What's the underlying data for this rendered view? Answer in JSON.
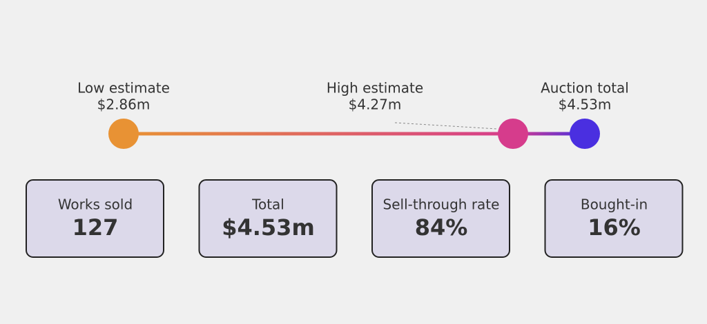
{
  "chart_data": {
    "type": "range",
    "categories": [
      "Low estimate",
      "High estimate",
      "Auction total"
    ],
    "values": [
      2.86,
      4.27,
      4.53
    ],
    "value_labels": [
      "$2.86m",
      "$4.27m",
      "$4.53m"
    ],
    "colors": [
      "#e89234",
      "#d63c8c",
      "#4a2fe0"
    ]
  },
  "cards": [
    {
      "label": "Works sold",
      "value": "127"
    },
    {
      "label": "Total",
      "value": "$4.53m"
    },
    {
      "label": "Sell-through rate",
      "value": "84%"
    },
    {
      "label": "Bought-in",
      "value": "16%"
    }
  ]
}
